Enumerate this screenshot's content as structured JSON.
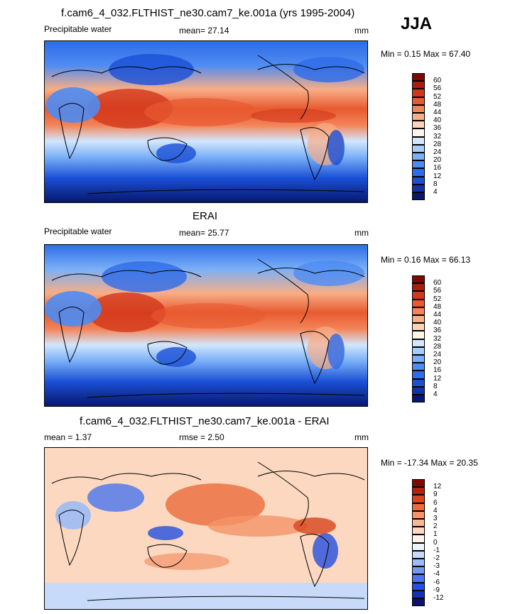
{
  "season": "JJA",
  "panels": [
    {
      "id": "model",
      "title": "f.cam6_4_032.FLTHIST_ne30.cam7_ke.001a (yrs 1995-2004)",
      "left_label": "Precipitable water",
      "stat_text": "mean=  27.14",
      "stat2_text": "",
      "units": "mm",
      "minmax_text": "Min =   0.15 Max =  67.40",
      "colorbar": {
        "colors": [
          "#08186b",
          "#1433a8",
          "#1a4fd6",
          "#2e6ce8",
          "#4f8cf2",
          "#7ab0f7",
          "#a7cefb",
          "#d3e6fd",
          "#fdf4ea",
          "#fbd3b8",
          "#f8ad86",
          "#f38358",
          "#e85a30",
          "#d2371a",
          "#aa1d0c",
          "#7d0a02"
        ],
        "labels": [
          "4",
          "8",
          "12",
          "16",
          "20",
          "24",
          "28",
          "32",
          "36",
          "40",
          "44",
          "48",
          "52",
          "56",
          "60"
        ]
      }
    },
    {
      "id": "obs",
      "title": "ERAI",
      "left_label": "Precipitable water",
      "stat_text": "mean=  25.77",
      "stat2_text": "",
      "units": "mm",
      "minmax_text": "Min =   0.16 Max =  66.13",
      "colorbar": {
        "colors": [
          "#08186b",
          "#1433a8",
          "#1a4fd6",
          "#2e6ce8",
          "#4f8cf2",
          "#7ab0f7",
          "#a7cefb",
          "#d3e6fd",
          "#fdf4ea",
          "#fbd3b8",
          "#f8ad86",
          "#f38358",
          "#e85a30",
          "#d2371a",
          "#aa1d0c",
          "#7d0a02"
        ],
        "labels": [
          "4",
          "8",
          "12",
          "16",
          "20",
          "24",
          "28",
          "32",
          "36",
          "40",
          "44",
          "48",
          "52",
          "56",
          "60"
        ]
      }
    },
    {
      "id": "diff",
      "title": "f.cam6_4_032.FLTHIST_ne30.cam7_ke.001a - ERAI",
      "left_label": "mean =   1.37",
      "stat_text": "rmse =   2.50",
      "stat2_text": "",
      "units": "mm",
      "minmax_text": "Min = -17.34 Max =  20.35",
      "colorbar": {
        "colors": [
          "#0a1470",
          "#1530b8",
          "#2550e0",
          "#4a75ec",
          "#7399f2",
          "#9dbbf6",
          "#c8daf9",
          "#edf2fc",
          "#fdf3ea",
          "#fbd8bf",
          "#f8b896",
          "#f49468",
          "#ec6c3c",
          "#d8451e",
          "#b0240e",
          "#7c0a02"
        ],
        "labels": [
          "-12",
          "-9",
          "-6",
          "-4",
          "-3",
          "-2",
          "-1",
          "0",
          "1",
          "2",
          "3",
          "4",
          "6",
          "9",
          "12"
        ]
      }
    }
  ]
}
